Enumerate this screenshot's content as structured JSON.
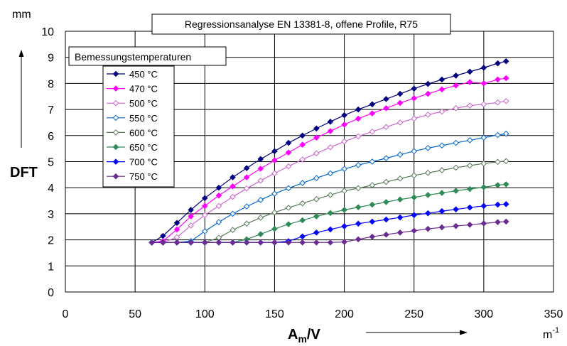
{
  "chart_data": {
    "type": "line",
    "title": "Regressionsanalyse EN 13381-8, offene Profile, R75",
    "xlabel": "A",
    "xlabel_sub": "m",
    "xlabel_tail": "/V",
    "xunit": "m",
    "xunit_sup": "-1",
    "ylabel": "DFT",
    "yunit": "mm",
    "xlim": [
      0,
      350
    ],
    "ylim": [
      0,
      10
    ],
    "xticks": [
      0,
      50,
      100,
      150,
      200,
      250,
      300,
      350
    ],
    "yticks": [
      0,
      1,
      2,
      3,
      4,
      5,
      6,
      7,
      8,
      9,
      10
    ],
    "grid": true,
    "legend_title": "Bemessungstemperaturen",
    "legend_position": "upper-left",
    "x": [
      62,
      70,
      80,
      90,
      100,
      110,
      120,
      130,
      140,
      150,
      160,
      170,
      180,
      190,
      200,
      210,
      220,
      230,
      240,
      250,
      260,
      270,
      280,
      290,
      300,
      310,
      316
    ],
    "series": [
      {
        "name": "450 °C",
        "color": "#000080",
        "marker": "diamond-filled",
        "values": [
          1.9,
          2.15,
          2.65,
          3.15,
          3.6,
          4.0,
          4.4,
          4.75,
          5.1,
          5.4,
          5.72,
          6.0,
          6.27,
          6.53,
          6.78,
          7.0,
          7.2,
          7.4,
          7.6,
          7.8,
          7.98,
          8.15,
          8.3,
          8.45,
          8.6,
          8.77,
          8.85
        ]
      },
      {
        "name": "470 °C",
        "color": "#FF00FF",
        "marker": "diamond-filled",
        "values": [
          1.9,
          1.95,
          2.4,
          2.9,
          3.3,
          3.7,
          4.05,
          4.4,
          4.73,
          5.05,
          5.35,
          5.65,
          5.92,
          6.17,
          6.42,
          6.65,
          6.85,
          7.05,
          7.25,
          7.43,
          7.6,
          7.77,
          7.92,
          8.05,
          8.0,
          8.15,
          8.2
        ]
      },
      {
        "name": "500 °C",
        "color": "#CC66CC",
        "marker": "diamond-open",
        "values": [
          1.9,
          1.9,
          2.1,
          2.55,
          2.95,
          3.3,
          3.65,
          3.97,
          4.27,
          4.55,
          4.82,
          5.08,
          5.32,
          5.55,
          5.77,
          5.97,
          6.15,
          6.33,
          6.5,
          6.65,
          6.8,
          6.92,
          7.05,
          7.15,
          7.2,
          7.27,
          7.32
        ]
      },
      {
        "name": "550 °C",
        "color": "#0066CC",
        "marker": "diamond-open",
        "values": [
          1.9,
          1.9,
          1.9,
          1.95,
          2.33,
          2.68,
          3.0,
          3.28,
          3.53,
          3.77,
          3.98,
          4.18,
          4.37,
          4.55,
          4.72,
          4.87,
          5.0,
          5.13,
          5.27,
          5.4,
          5.52,
          5.62,
          5.72,
          5.82,
          5.92,
          6.02,
          6.07
        ]
      },
      {
        "name": "600 °C",
        "color": "#5A7A5A",
        "marker": "diamond-open",
        "values": [
          1.9,
          1.9,
          1.9,
          1.9,
          1.9,
          2.08,
          2.38,
          2.62,
          2.85,
          3.05,
          3.23,
          3.4,
          3.56,
          3.72,
          3.88,
          3.98,
          4.1,
          4.22,
          4.35,
          4.47,
          4.57,
          4.67,
          4.77,
          4.85,
          4.93,
          4.99,
          5.02
        ]
      },
      {
        "name": "650 °C",
        "color": "#2E8B57",
        "marker": "diamond-filled",
        "values": [
          1.9,
          1.9,
          1.9,
          1.9,
          1.9,
          1.9,
          1.9,
          2.02,
          2.22,
          2.42,
          2.6,
          2.75,
          2.9,
          3.03,
          3.15,
          3.25,
          3.35,
          3.45,
          3.55,
          3.63,
          3.72,
          3.8,
          3.88,
          3.95,
          4.02,
          4.1,
          4.13
        ]
      },
      {
        "name": "700 °C",
        "color": "#0000FF",
        "marker": "diamond-filled",
        "values": [
          1.9,
          1.9,
          1.9,
          1.9,
          1.9,
          1.9,
          1.9,
          1.9,
          1.9,
          1.9,
          1.95,
          2.13,
          2.28,
          2.4,
          2.52,
          2.62,
          2.7,
          2.78,
          2.86,
          2.95,
          3.02,
          3.1,
          3.17,
          3.24,
          3.3,
          3.35,
          3.37
        ]
      },
      {
        "name": "750 °C",
        "color": "#6B2C91",
        "marker": "diamond-filled",
        "values": [
          1.9,
          1.9,
          1.9,
          1.9,
          1.9,
          1.9,
          1.9,
          1.9,
          1.9,
          1.9,
          1.9,
          1.9,
          1.9,
          1.9,
          1.92,
          2.02,
          2.12,
          2.2,
          2.28,
          2.35,
          2.42,
          2.48,
          2.53,
          2.58,
          2.63,
          2.68,
          2.7
        ]
      }
    ]
  }
}
